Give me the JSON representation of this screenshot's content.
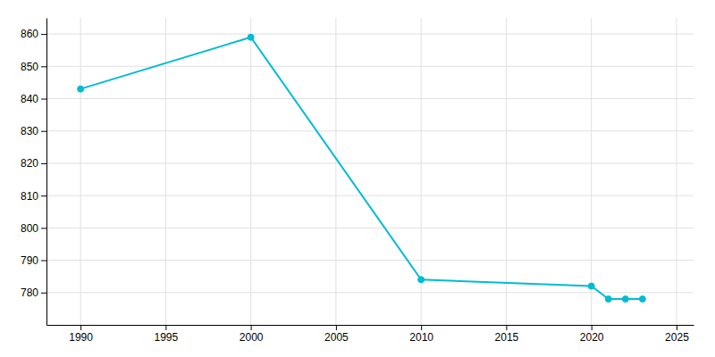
{
  "chart_data": {
    "type": "line",
    "x": [
      1990,
      2000,
      2010,
      2020,
      2021,
      2022,
      2023
    ],
    "values": [
      843,
      859,
      784,
      782,
      778,
      778,
      778
    ],
    "color": "#00bcd4",
    "marker": "circle",
    "xlim": [
      1988,
      2026
    ],
    "ylim": [
      770,
      865
    ],
    "xticks": [
      1990,
      1995,
      2000,
      2005,
      2010,
      2015,
      2020,
      2025
    ],
    "yticks": [
      780,
      790,
      800,
      810,
      820,
      830,
      840,
      850,
      860
    ],
    "grid": true
  }
}
